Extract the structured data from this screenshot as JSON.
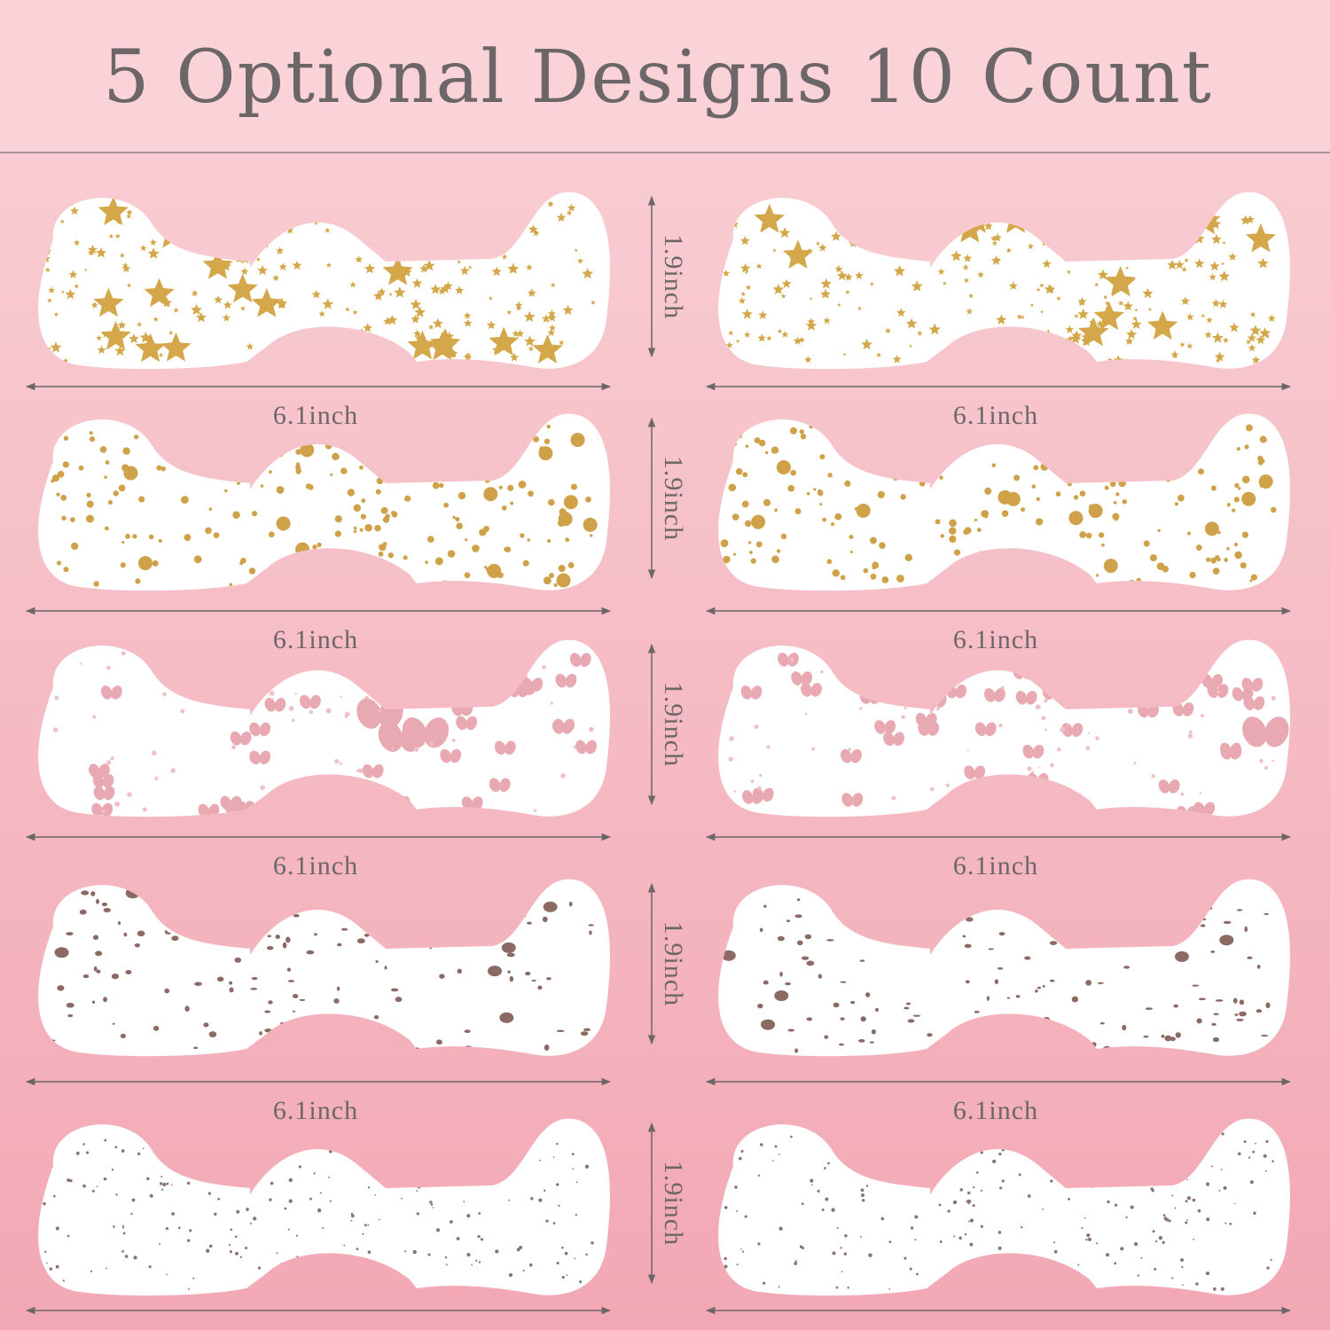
{
  "title": "5 Optional Designs 10 Count",
  "rows": [
    {
      "height_label": "1.9inch",
      "width_labels": [
        "6.1inch",
        "6.1inch"
      ]
    },
    {
      "height_label": "1.9inch",
      "width_labels": [
        "6.1inch",
        "6.1inch"
      ]
    },
    {
      "height_label": "1.9inch",
      "width_labels": [
        "6.1inch",
        "6.1inch"
      ]
    },
    {
      "height_label": "1.9inch",
      "width_labels": [
        "6.1inch",
        "6.1inch"
      ]
    },
    {
      "height_label": "1.9inch"
    }
  ]
}
